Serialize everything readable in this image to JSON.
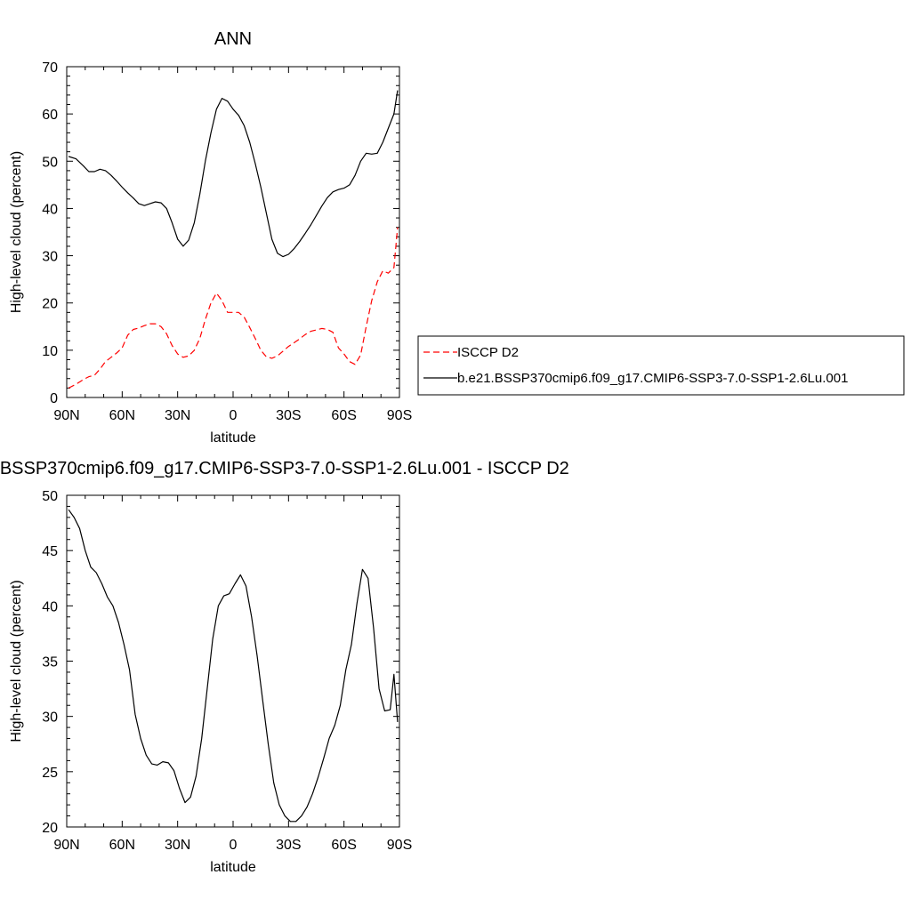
{
  "chart_data": [
    {
      "type": "line",
      "title": "ANN",
      "xlabel": "latitude",
      "ylabel": "High-level cloud (percent)",
      "xlim": [
        -90,
        90
      ],
      "ylim": [
        0,
        70
      ],
      "x_ticks": [
        {
          "value": -90,
          "label": "90N"
        },
        {
          "value": -60,
          "label": "60N"
        },
        {
          "value": -30,
          "label": "30N"
        },
        {
          "value": 0,
          "label": "0"
        },
        {
          "value": 30,
          "label": "30S"
        },
        {
          "value": 60,
          "label": "60S"
        },
        {
          "value": 90,
          "label": "90S"
        }
      ],
      "y_ticks": [
        0,
        10,
        20,
        30,
        40,
        50,
        60,
        70
      ],
      "grid": false,
      "legend": {
        "placement": "right",
        "entries": [
          {
            "series": 1,
            "label": "ISCCP D2"
          },
          {
            "series": 0,
            "label": "b.e21.BSSP370cmip6.f09_g17.CMIP6-SSP3-7.0-SSP1-2.6Lu.001"
          }
        ]
      },
      "series": [
        {
          "name": "b.e21.BSSP370cmip6.f09_g17.CMIP6-SSP3-7.0-SSP1-2.6Lu.001",
          "color": "#000000",
          "dash": "solid",
          "x": [
            -89,
            -85,
            -81,
            -78,
            -75,
            -72,
            -69,
            -66,
            -63,
            -60,
            -57,
            -54,
            -51,
            -48,
            -45,
            -42,
            -39,
            -36,
            -33,
            -30,
            -27,
            -24,
            -21,
            -18,
            -15,
            -12,
            -9,
            -6,
            -3,
            0,
            3,
            6,
            9,
            12,
            15,
            18,
            21,
            24,
            27,
            30,
            33,
            36,
            39,
            42,
            45,
            48,
            51,
            54,
            57,
            60,
            63,
            66,
            69,
            72,
            75,
            78,
            81,
            84,
            87,
            89
          ],
          "y": [
            51,
            50.5,
            49,
            47.8,
            47.8,
            48.3,
            48,
            47,
            45.8,
            44.5,
            43.3,
            42.2,
            41,
            40.6,
            41,
            41.4,
            41.2,
            40,
            37,
            33.5,
            32,
            33.3,
            37,
            43,
            50,
            56,
            61,
            63.3,
            62.7,
            61,
            59.7,
            57.5,
            54,
            49.5,
            44.5,
            39,
            33.5,
            30.5,
            29.8,
            30.3,
            31.5,
            33,
            34.7,
            36.5,
            38.5,
            40.5,
            42.3,
            43.5,
            44,
            44.3,
            45,
            47,
            50,
            51.7,
            51.5,
            51.7,
            54,
            57,
            60,
            65
          ]
        },
        {
          "name": "ISCCP D2",
          "color": "#ff0000",
          "dash": "dashed",
          "x": [
            -89,
            -85,
            -81,
            -78,
            -75,
            -72,
            -69,
            -66,
            -63,
            -60,
            -57,
            -54,
            -51,
            -48,
            -45,
            -42,
            -39,
            -36,
            -33,
            -30,
            -27,
            -24,
            -21,
            -18,
            -15,
            -12,
            -9,
            -6,
            -3,
            0,
            3,
            6,
            9,
            12,
            15,
            18,
            21,
            24,
            27,
            30,
            33,
            36,
            39,
            42,
            45,
            48,
            51,
            54,
            57,
            60,
            63,
            66,
            69,
            72,
            75,
            78,
            81,
            84,
            87,
            89
          ],
          "y": [
            2,
            2.8,
            3.8,
            4.4,
            4.7,
            6,
            7.6,
            8.5,
            9.4,
            10.5,
            13.2,
            14.4,
            14.7,
            15.2,
            15.6,
            15.6,
            15,
            13.5,
            11,
            9.2,
            8.5,
            8.8,
            10,
            12.5,
            16.5,
            20,
            22.1,
            20.5,
            18,
            18,
            18,
            17,
            14.8,
            12.5,
            10,
            8.6,
            8.3,
            8.8,
            9.8,
            10.8,
            11.6,
            12.4,
            13.3,
            14,
            14.3,
            14.6,
            14.4,
            13.8,
            10.5,
            9.2,
            7.6,
            7,
            9,
            15,
            20.5,
            24.5,
            26.8,
            26.3,
            27.5,
            36
          ]
        }
      ]
    },
    {
      "type": "line",
      "title": "b.e21.BSSP370cmip6.f09_g17.CMIP6-SSP3-7.0-SSP1-2.6Lu.001 - ISCCP D2",
      "xlabel": "latitude",
      "ylabel": "High-level cloud (percent)",
      "xlim": [
        -90,
        90
      ],
      "ylim": [
        20,
        50
      ],
      "x_ticks": [
        {
          "value": -90,
          "label": "90N"
        },
        {
          "value": -60,
          "label": "60N"
        },
        {
          "value": -30,
          "label": "30N"
        },
        {
          "value": 0,
          "label": "0"
        },
        {
          "value": 30,
          "label": "30S"
        },
        {
          "value": 60,
          "label": "60S"
        },
        {
          "value": 90,
          "label": "90S"
        }
      ],
      "y_ticks": [
        20,
        25,
        30,
        35,
        40,
        45,
        50
      ],
      "grid": false,
      "series": [
        {
          "color": "#000000",
          "dash": "solid",
          "x": [
            -89,
            -86,
            -83,
            -80,
            -77,
            -74,
            -71,
            -68,
            -65,
            -62,
            -59,
            -56,
            -53,
            -50,
            -47,
            -44,
            -41,
            -38,
            -35,
            -32,
            -29,
            -26,
            -23,
            -20,
            -17,
            -14,
            -11,
            -8,
            -5,
            -2,
            1,
            4,
            7,
            10,
            13,
            16,
            19,
            22,
            25,
            28,
            31,
            34,
            37,
            40,
            43,
            46,
            49,
            52,
            55,
            58,
            61,
            64,
            67,
            70,
            73,
            76,
            79,
            82,
            85,
            87,
            89
          ],
          "y": [
            48.7,
            48,
            47,
            45,
            43.5,
            43,
            42,
            40.8,
            40,
            38.5,
            36.5,
            34.2,
            30.2,
            28,
            26.5,
            25.7,
            25.6,
            25.9,
            25.8,
            25.1,
            23.5,
            22.2,
            22.7,
            24.6,
            28,
            32.5,
            37,
            40,
            40.9,
            41.1,
            42,
            42.8,
            41.8,
            39,
            35.5,
            31.5,
            27.5,
            24,
            22,
            21,
            20.5,
            20.5,
            21,
            21.8,
            23,
            24.5,
            26.2,
            28,
            29.2,
            31,
            34.2,
            36.5,
            40.2,
            43.3,
            42.5,
            38,
            32.5,
            30.5,
            30.6,
            33.8,
            29.5
          ]
        }
      ]
    }
  ]
}
